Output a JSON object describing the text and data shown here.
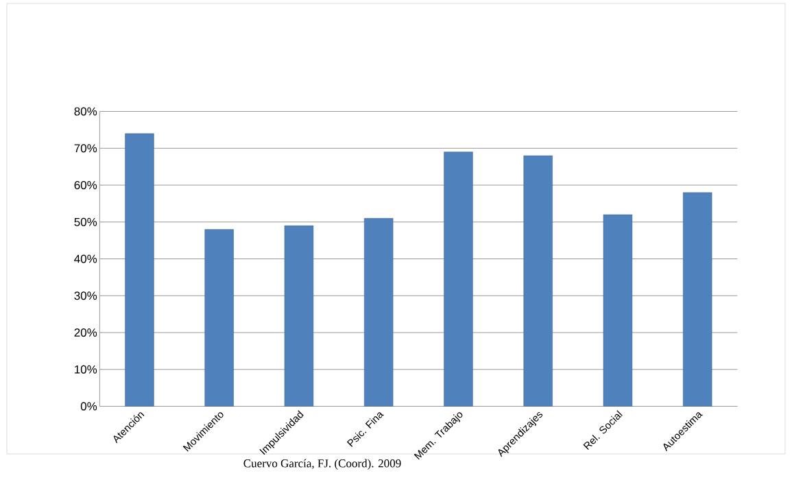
{
  "chart_data": {
    "type": "bar",
    "categories": [
      "Atención",
      "Movimiento",
      "Impulsividad",
      "Psic. Fina",
      "Mem. Trabajo",
      "Aprendizajes",
      "Rel. Social",
      "Autoestima"
    ],
    "values": [
      74,
      48,
      49,
      51,
      69,
      68,
      52,
      58
    ],
    "color": "#4f81bd",
    "ylim": [
      0,
      80
    ],
    "yticks": [
      {
        "value": 0,
        "label": "0%"
      },
      {
        "value": 10,
        "label": "10%"
      },
      {
        "value": 20,
        "label": "20%"
      },
      {
        "value": 30,
        "label": "30%"
      },
      {
        "value": 40,
        "label": "40%"
      },
      {
        "value": 50,
        "label": "50%"
      },
      {
        "value": 60,
        "label": "60%"
      },
      {
        "value": 70,
        "label": "70%"
      },
      {
        "value": 80,
        "label": "80%"
      }
    ],
    "grid": "y",
    "annotations": [
      "Cuervo García, FJ. (Coord). 2009"
    ]
  }
}
